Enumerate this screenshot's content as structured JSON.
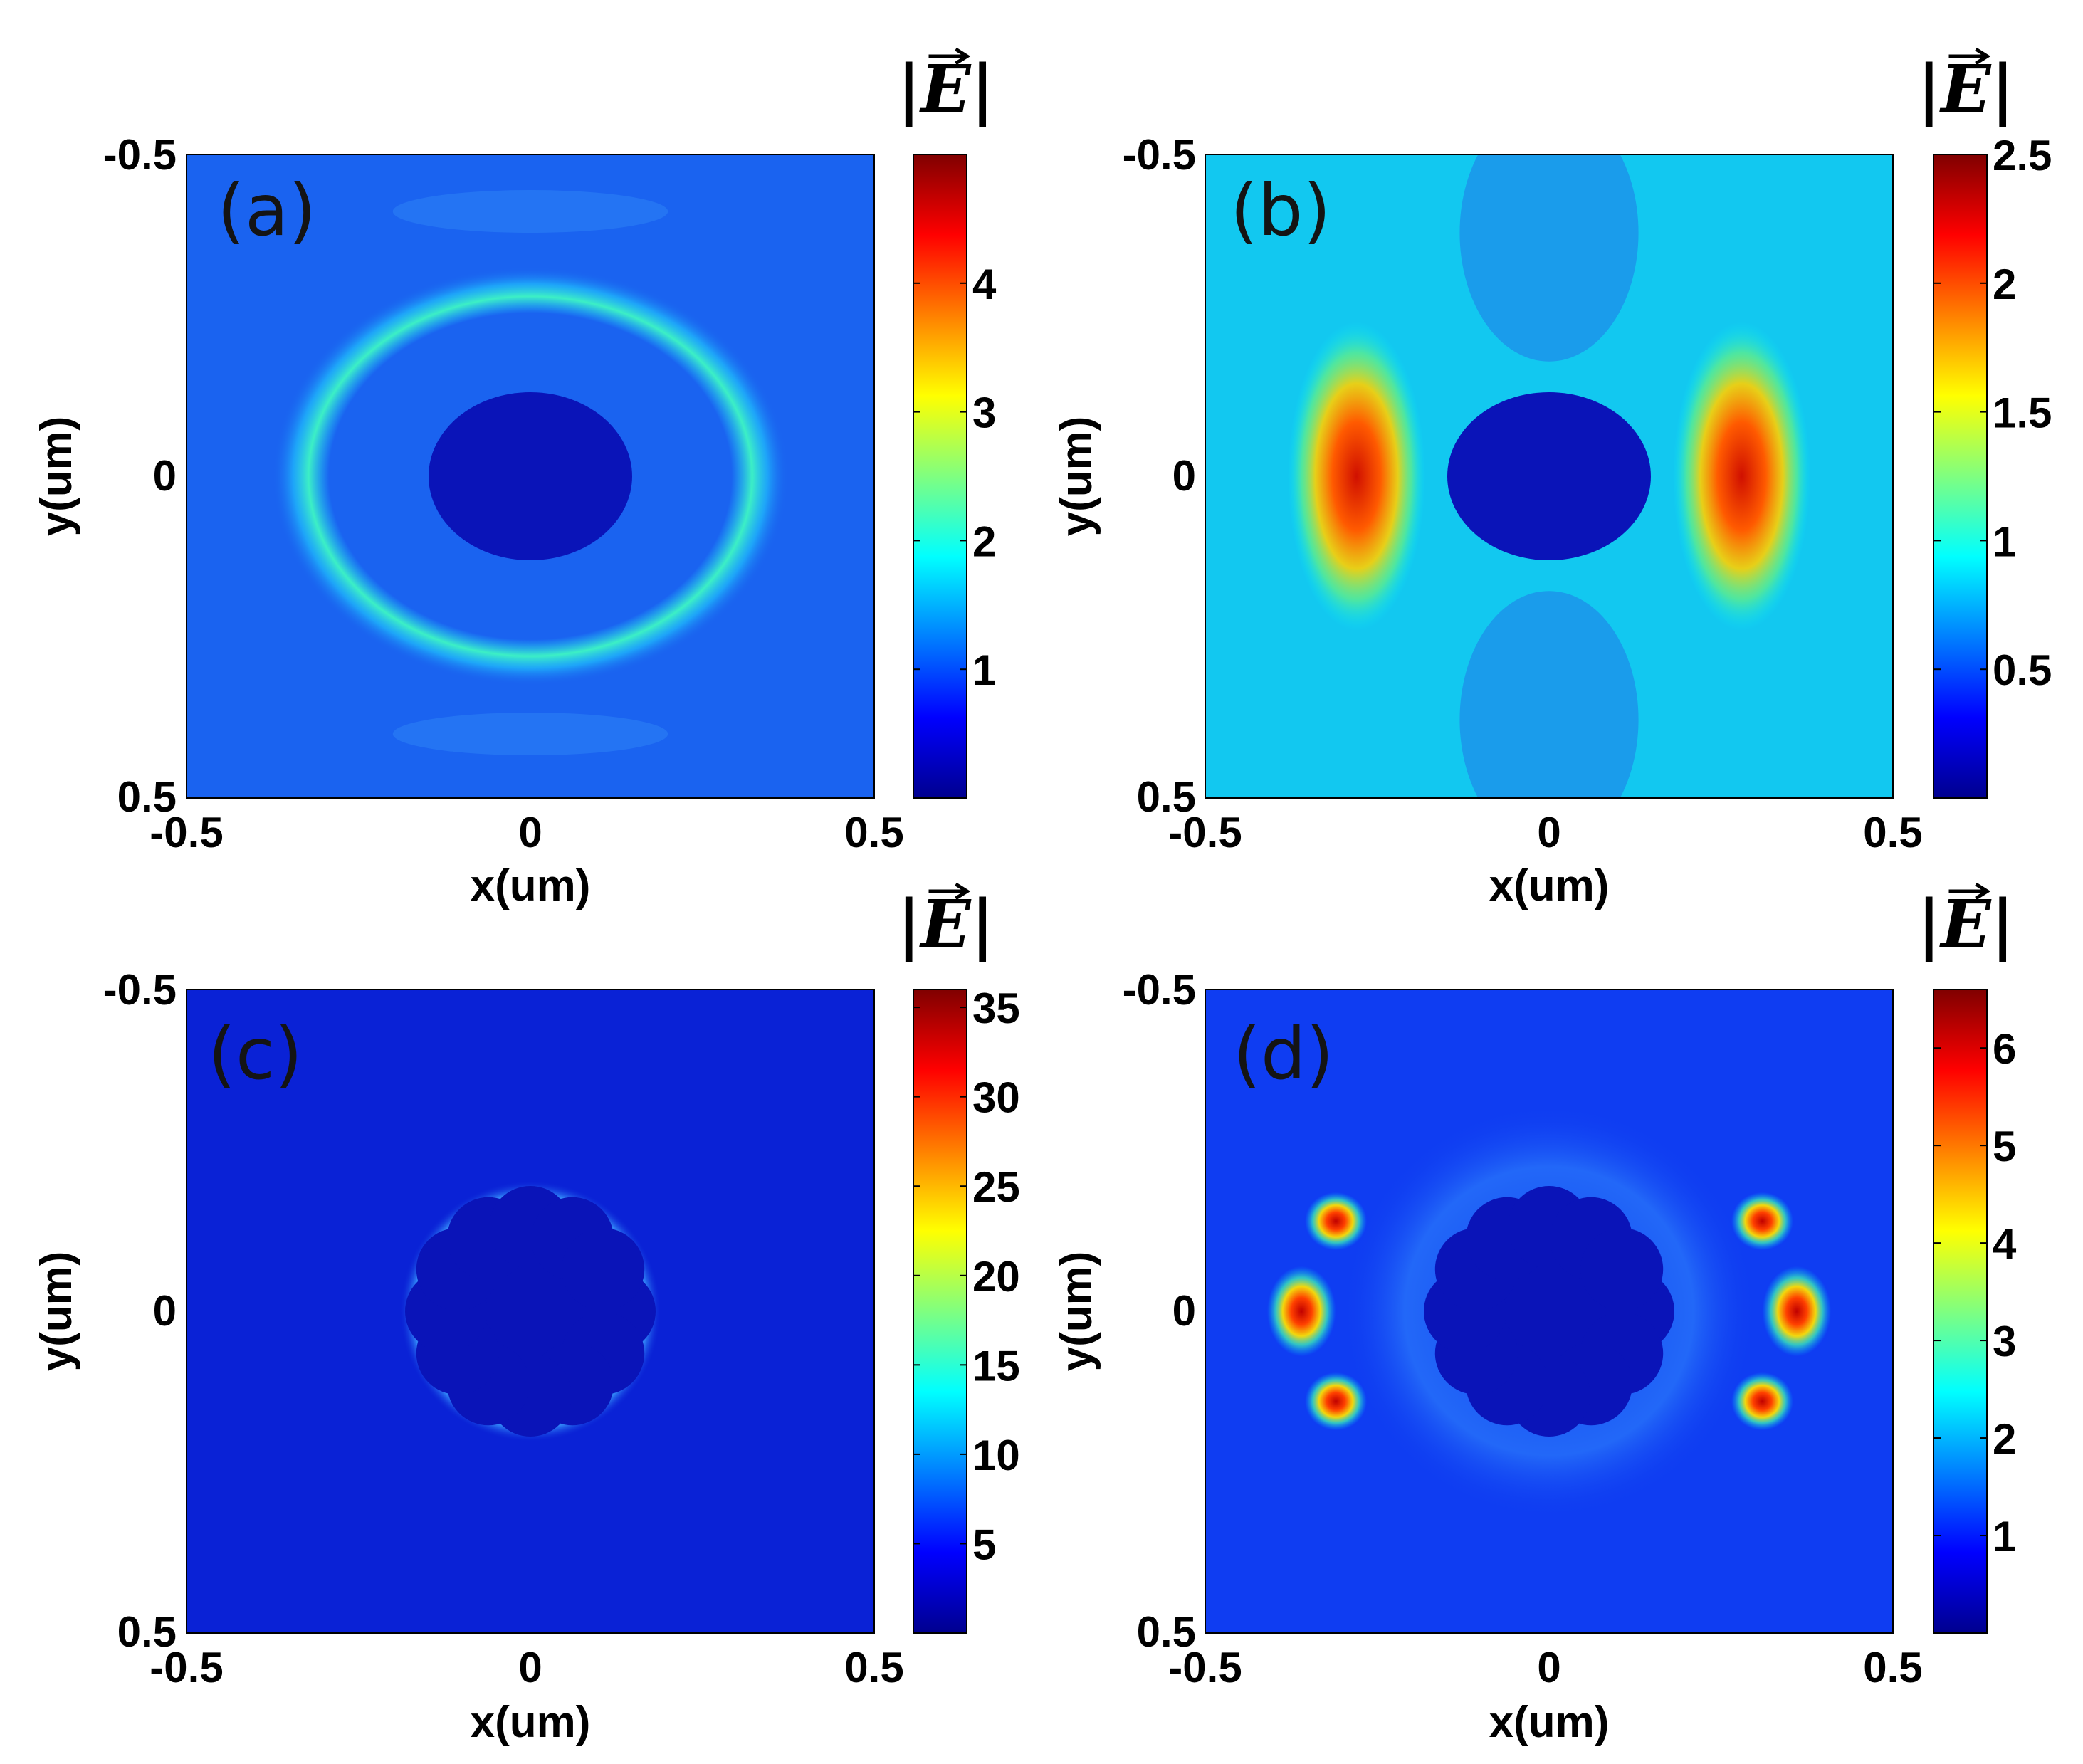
{
  "chart_data": [
    {
      "type": "heatmap",
      "panel_label": "(a)",
      "shape": "circle",
      "field": "weak",
      "xlabel": "x(um)",
      "ylabel": "y(um)",
      "xlim": [
        -0.5,
        0.5
      ],
      "ylim": [
        -0.5,
        0.5
      ],
      "xticks": [
        "-0.5",
        "0",
        "0.5"
      ],
      "yticks": [
        "-0.5",
        "0",
        "0.5"
      ],
      "colorbar_title": "|E|",
      "colorbar_range": [
        0,
        5
      ],
      "colorbar_ticks": [
        1,
        2,
        3,
        4
      ],
      "colorbar_ticklabels": [
        "1",
        "2",
        "3",
        "4"
      ]
    },
    {
      "type": "heatmap",
      "panel_label": "(b)",
      "shape": "circle",
      "field": "lateral-hotspots",
      "xlabel": "x(um)",
      "ylabel": "y(um)",
      "xlim": [
        -0.5,
        0.5
      ],
      "ylim": [
        -0.5,
        0.5
      ],
      "xticks": [
        "-0.5",
        "0",
        "0.5"
      ],
      "yticks": [
        "-0.5",
        "0",
        "0.5"
      ],
      "colorbar_title": "|E|",
      "colorbar_range": [
        0,
        2.5
      ],
      "colorbar_ticks": [
        0.5,
        1,
        1.5,
        2,
        2.5
      ],
      "colorbar_ticklabels": [
        "0.5",
        "1",
        "1.5",
        "2",
        "2.5"
      ]
    },
    {
      "type": "heatmap",
      "panel_label": "(c)",
      "shape": "flower-12-lobes",
      "field": "faint-edge",
      "xlabel": "x(um)",
      "ylabel": "y(um)",
      "xlim": [
        -0.5,
        0.5
      ],
      "ylim": [
        -0.5,
        0.5
      ],
      "xticks": [
        "-0.5",
        "0",
        "0.5"
      ],
      "yticks": [
        "-0.5",
        "0",
        "0.5"
      ],
      "colorbar_title": "|E|",
      "colorbar_range": [
        0,
        36
      ],
      "colorbar_ticks": [
        5,
        10,
        15,
        20,
        25,
        30,
        35
      ],
      "colorbar_ticklabels": [
        "5",
        "10",
        "15",
        "20",
        "25",
        "30",
        "35"
      ]
    },
    {
      "type": "heatmap",
      "panel_label": "(d)",
      "shape": "flower-12-lobes",
      "field": "lobe-hotspots",
      "xlabel": "x(um)",
      "ylabel": "y(um)",
      "xlim": [
        -0.5,
        0.5
      ],
      "ylim": [
        -0.5,
        0.5
      ],
      "xticks": [
        "-0.5",
        "0",
        "0.5"
      ],
      "yticks": [
        "-0.5",
        "0",
        "0.5"
      ],
      "colorbar_title": "|E|",
      "colorbar_range": [
        0,
        6.6
      ],
      "colorbar_ticks": [
        1,
        2,
        3,
        4,
        5,
        6
      ],
      "colorbar_ticklabels": [
        "1",
        "2",
        "3",
        "4",
        "5",
        "6"
      ]
    }
  ],
  "colormap": [
    "#00008f",
    "#0000ff",
    "#00ffff",
    "#ffff00",
    "#ff0000",
    "#800000"
  ],
  "colors": {
    "panel_a_bg": "#1a63f0",
    "panel_b_bg": "#12c8f0",
    "panel_c_bg": "#0a22d6",
    "panel_d_bg": "#0f3df2",
    "particle": "#0a14b8"
  }
}
